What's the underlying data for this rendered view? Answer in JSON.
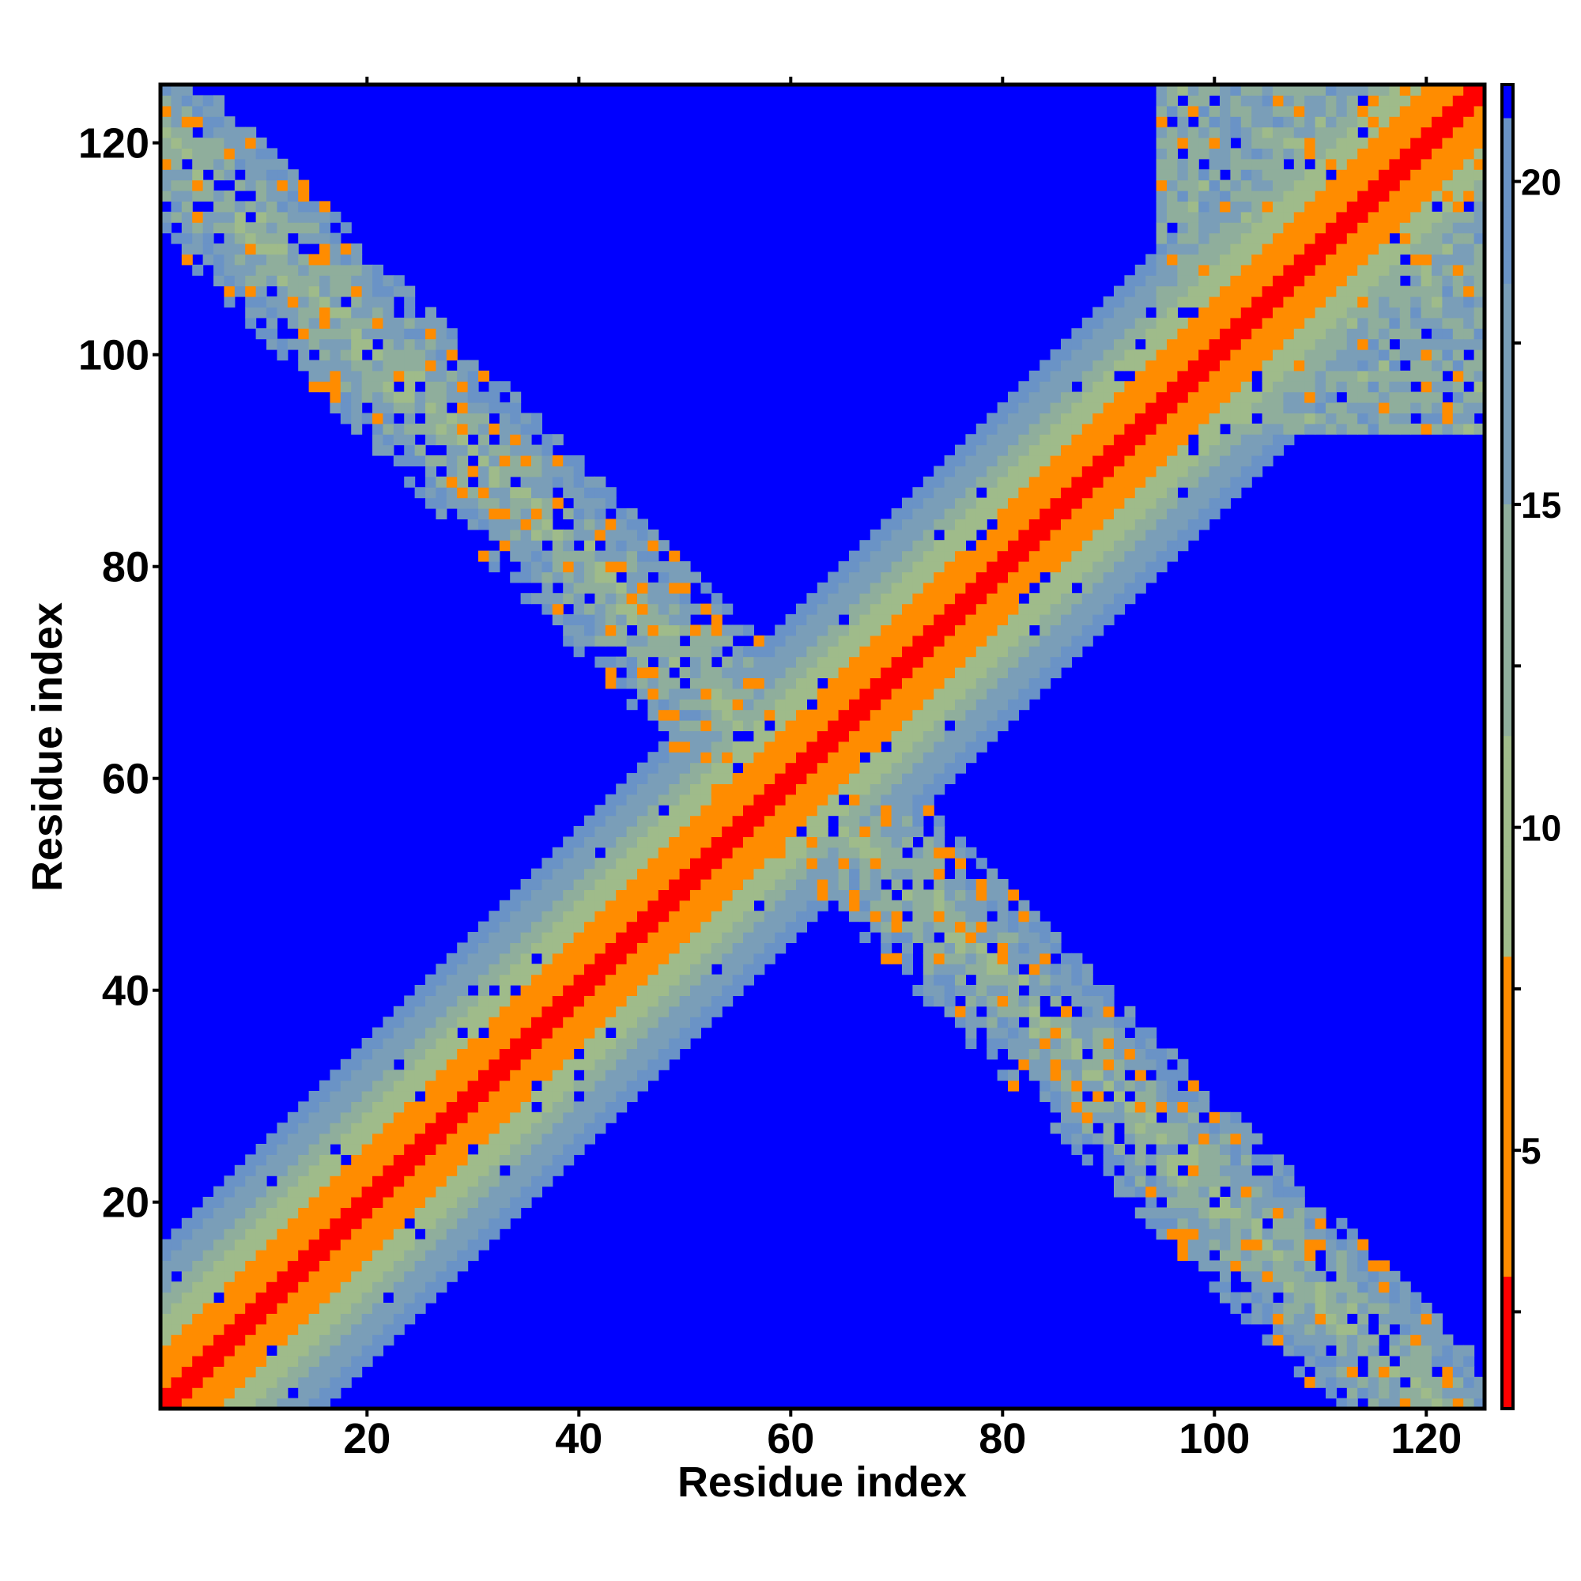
{
  "chart_data": {
    "type": "heatmap",
    "title": "",
    "xlabel": "Residue index",
    "ylabel": "Residue index",
    "n_residues": 125,
    "xlim": [
      1,
      125
    ],
    "ylim": [
      1,
      125
    ],
    "x_ticks": [
      "20",
      "40",
      "60",
      "80",
      "100",
      "120"
    ],
    "x_tick_values": [
      20,
      40,
      60,
      80,
      100,
      120
    ],
    "y_ticks": [
      "20",
      "40",
      "60",
      "80",
      "100",
      "120"
    ],
    "y_tick_values": [
      20,
      40,
      60,
      80,
      100,
      120
    ],
    "colorbar": {
      "range": [
        1,
        21.5
      ],
      "tick_labels": [
        "5",
        "10",
        "15",
        "20"
      ],
      "tick_values": [
        5,
        10,
        15,
        20
      ],
      "cutoff_value": 21,
      "colors": {
        "near": "#ff0000",
        "close": "#ff8c00",
        "mid": "#9fbb8a",
        "far": "#6a93c6",
        "cutoff": "#0000ff"
      }
    },
    "structure": {
      "diagonal": "distance increases with |i-j|; red at |i-j|<=1, orange to ~3, green/grey band to ~14, blue beyond",
      "anti_diagonal": "antiparallel contact band along i+j ≈ 121 from residue ~1 to ~60, patchy (mixed orange/green/blue)",
      "corner_cluster": "patchy contact region around residues 95–125",
      "grid": false
    }
  }
}
